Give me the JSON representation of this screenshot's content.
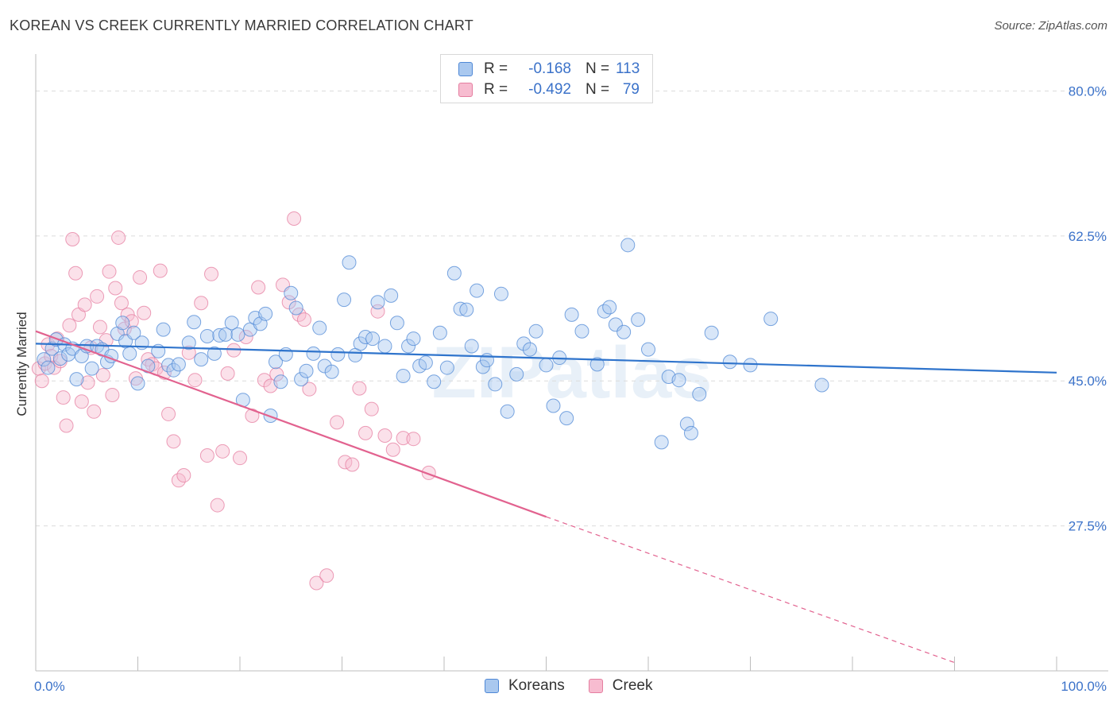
{
  "title": "KOREAN VS CREEK CURRENTLY MARRIED CORRELATION CHART",
  "source": "Source: ZipAtlas.com",
  "watermark": "ZIPatlas",
  "legend_top": [
    {
      "r_label": "R =",
      "r_value": "-0.168",
      "n_label": "N =",
      "n_value": "113"
    },
    {
      "r_label": "R =",
      "r_value": "-0.492",
      "n_label": "N =",
      "n_value": "79"
    }
  ],
  "legend_bottom": [
    "Koreans",
    "Creek"
  ],
  "colors": {
    "korean_fill": "#a9c8ef",
    "korean_stroke": "#4f88d6",
    "korean_line": "#2f74cc",
    "creek_fill": "#f7bcd0",
    "creek_stroke": "#e57ea0",
    "creek_line": "#e2628f",
    "tick_label": "#3b72c9",
    "grid": "#dcdcdc"
  },
  "chart_data": {
    "type": "scatter",
    "title": "KOREAN VS CREEK CURRENTLY MARRIED CORRELATION CHART",
    "xlabel": "",
    "ylabel": "Currently Married",
    "xlim": [
      0,
      100
    ],
    "ylim": [
      10,
      83.5
    ],
    "y_ticks": [
      27.5,
      45.0,
      62.5,
      80.0
    ],
    "y_tick_labels": [
      "27.5%",
      "45.0%",
      "62.5%",
      "80.0%"
    ],
    "x_tick_labels": [
      "0.0%",
      "100.0%"
    ],
    "grid": "horizontal dashed",
    "legend_position": "top-center and bottom-center",
    "series": [
      {
        "name": "Koreans",
        "r": -0.168,
        "n": 113,
        "trend": {
          "x0": 0,
          "y0": 49.5,
          "x1": 100,
          "y1": 46.0,
          "style": "solid"
        },
        "points": [
          [
            0.8,
            47.6
          ],
          [
            1.2,
            46.6
          ],
          [
            1.6,
            48.9
          ],
          [
            2.0,
            50.0
          ],
          [
            2.4,
            47.7
          ],
          [
            2.8,
            49.4
          ],
          [
            3.2,
            48.2
          ],
          [
            3.6,
            48.9
          ],
          [
            4.0,
            45.2
          ],
          [
            4.5,
            48.0
          ],
          [
            5.0,
            49.2
          ],
          [
            5.5,
            46.5
          ],
          [
            6.0,
            49.2
          ],
          [
            6.5,
            48.8
          ],
          [
            7.0,
            47.3
          ],
          [
            7.4,
            48.0
          ],
          [
            8.0,
            50.7
          ],
          [
            8.5,
            52.0
          ],
          [
            8.8,
            49.8
          ],
          [
            9.2,
            48.3
          ],
          [
            9.6,
            50.8
          ],
          [
            10.0,
            44.7
          ],
          [
            10.4,
            49.6
          ],
          [
            11.0,
            46.8
          ],
          [
            12.0,
            48.6
          ],
          [
            12.5,
            51.2
          ],
          [
            13.0,
            46.9
          ],
          [
            13.5,
            46.3
          ],
          [
            14.0,
            47.0
          ],
          [
            15.0,
            49.6
          ],
          [
            15.5,
            52.1
          ],
          [
            16.2,
            47.6
          ],
          [
            16.8,
            50.4
          ],
          [
            17.5,
            48.3
          ],
          [
            18.0,
            50.5
          ],
          [
            18.6,
            50.6
          ],
          [
            19.2,
            52.0
          ],
          [
            19.8,
            50.6
          ],
          [
            20.3,
            42.7
          ],
          [
            21.0,
            51.2
          ],
          [
            21.5,
            52.6
          ],
          [
            22.0,
            51.9
          ],
          [
            22.5,
            53.1
          ],
          [
            23.0,
            40.8
          ],
          [
            23.5,
            47.3
          ],
          [
            24.0,
            44.9
          ],
          [
            24.5,
            48.2
          ],
          [
            25.0,
            55.6
          ],
          [
            25.5,
            53.8
          ],
          [
            26.0,
            45.2
          ],
          [
            26.5,
            46.2
          ],
          [
            27.2,
            48.3
          ],
          [
            27.8,
            51.4
          ],
          [
            28.3,
            46.8
          ],
          [
            29.0,
            46.1
          ],
          [
            29.6,
            48.2
          ],
          [
            30.2,
            54.8
          ],
          [
            30.7,
            59.3
          ],
          [
            31.3,
            48.1
          ],
          [
            31.8,
            49.5
          ],
          [
            32.3,
            50.3
          ],
          [
            33.0,
            50.1
          ],
          [
            33.5,
            54.5
          ],
          [
            34.2,
            49.2
          ],
          [
            34.8,
            55.3
          ],
          [
            35.4,
            52.0
          ],
          [
            36.0,
            45.6
          ],
          [
            36.5,
            49.2
          ],
          [
            37.0,
            50.1
          ],
          [
            37.6,
            46.8
          ],
          [
            38.2,
            47.2
          ],
          [
            39.0,
            44.9
          ],
          [
            39.6,
            50.8
          ],
          [
            40.3,
            46.6
          ],
          [
            41.0,
            58.0
          ],
          [
            41.6,
            53.7
          ],
          [
            42.2,
            53.6
          ],
          [
            42.7,
            49.2
          ],
          [
            43.2,
            55.9
          ],
          [
            43.8,
            46.7
          ],
          [
            44.2,
            47.5
          ],
          [
            45.0,
            44.6
          ],
          [
            45.6,
            55.5
          ],
          [
            46.2,
            41.3
          ],
          [
            47.1,
            45.8
          ],
          [
            47.8,
            49.5
          ],
          [
            48.4,
            48.8
          ],
          [
            49.0,
            51.0
          ],
          [
            50.0,
            46.9
          ],
          [
            50.7,
            42.0
          ],
          [
            51.3,
            47.8
          ],
          [
            52.0,
            40.5
          ],
          [
            52.5,
            53.0
          ],
          [
            53.5,
            51.0
          ],
          [
            55.0,
            47.0
          ],
          [
            55.7,
            53.4
          ],
          [
            56.2,
            53.9
          ],
          [
            56.8,
            51.8
          ],
          [
            57.6,
            50.9
          ],
          [
            58.0,
            61.4
          ],
          [
            59.0,
            52.4
          ],
          [
            60.0,
            48.8
          ],
          [
            61.3,
            37.6
          ],
          [
            62.0,
            45.5
          ],
          [
            63.0,
            45.1
          ],
          [
            63.8,
            39.8
          ],
          [
            64.2,
            38.7
          ],
          [
            65.0,
            43.4
          ],
          [
            66.2,
            50.8
          ],
          [
            68.0,
            47.3
          ],
          [
            70.0,
            46.9
          ],
          [
            72.0,
            52.5
          ],
          [
            77.0,
            44.5
          ]
        ]
      },
      {
        "name": "Creek",
        "r": -0.492,
        "n": 79,
        "trend": {
          "x0": 0,
          "y0": 51.0,
          "x1": 50,
          "y1": 28.6,
          "style": "solid"
        },
        "trend_extension": {
          "x0": 50,
          "y0": 28.6,
          "x1": 90,
          "y1": 11.0,
          "style": "dashed"
        },
        "points": [
          [
            0.3,
            46.5
          ],
          [
            0.6,
            45.0
          ],
          [
            0.9,
            47.1
          ],
          [
            1.2,
            49.4
          ],
          [
            1.5,
            48.0
          ],
          [
            1.8,
            46.6
          ],
          [
            2.1,
            50.1
          ],
          [
            2.4,
            47.4
          ],
          [
            2.7,
            43.0
          ],
          [
            3.0,
            39.6
          ],
          [
            3.3,
            51.7
          ],
          [
            3.6,
            62.1
          ],
          [
            3.9,
            58.0
          ],
          [
            4.2,
            53.0
          ],
          [
            4.5,
            42.5
          ],
          [
            4.8,
            54.2
          ],
          [
            5.1,
            44.8
          ],
          [
            5.4,
            49.0
          ],
          [
            5.7,
            41.3
          ],
          [
            6.0,
            55.2
          ],
          [
            6.3,
            51.5
          ],
          [
            6.6,
            45.7
          ],
          [
            6.9,
            49.9
          ],
          [
            7.2,
            58.2
          ],
          [
            7.5,
            43.3
          ],
          [
            7.8,
            56.2
          ],
          [
            8.1,
            62.3
          ],
          [
            8.4,
            54.4
          ],
          [
            8.7,
            51.3
          ],
          [
            9.0,
            53.0
          ],
          [
            9.4,
            52.2
          ],
          [
            9.8,
            45.3
          ],
          [
            10.2,
            57.5
          ],
          [
            10.6,
            53.2
          ],
          [
            11.0,
            47.6
          ],
          [
            11.4,
            47.0
          ],
          [
            11.8,
            46.5
          ],
          [
            12.2,
            58.3
          ],
          [
            12.6,
            46.0
          ],
          [
            13.0,
            41.0
          ],
          [
            13.5,
            37.7
          ],
          [
            14.0,
            33.0
          ],
          [
            14.5,
            33.6
          ],
          [
            15.0,
            48.4
          ],
          [
            15.6,
            45.1
          ],
          [
            16.2,
            54.4
          ],
          [
            16.8,
            36.0
          ],
          [
            17.2,
            57.9
          ],
          [
            17.8,
            30.0
          ],
          [
            18.3,
            36.5
          ],
          [
            18.8,
            45.9
          ],
          [
            19.4,
            48.7
          ],
          [
            20.0,
            35.7
          ],
          [
            20.6,
            50.3
          ],
          [
            21.2,
            40.8
          ],
          [
            21.8,
            56.3
          ],
          [
            22.4,
            45.1
          ],
          [
            23.0,
            44.4
          ],
          [
            23.6,
            45.8
          ],
          [
            24.2,
            56.6
          ],
          [
            24.8,
            54.5
          ],
          [
            25.3,
            64.6
          ],
          [
            25.8,
            53.0
          ],
          [
            26.3,
            52.4
          ],
          [
            26.8,
            44.0
          ],
          [
            27.5,
            20.6
          ],
          [
            28.5,
            21.5
          ],
          [
            29.5,
            40.0
          ],
          [
            30.3,
            35.2
          ],
          [
            31.0,
            34.9
          ],
          [
            31.7,
            44.1
          ],
          [
            32.3,
            38.7
          ],
          [
            32.9,
            41.6
          ],
          [
            33.5,
            53.4
          ],
          [
            34.2,
            38.4
          ],
          [
            35.0,
            36.7
          ],
          [
            36.0,
            38.1
          ],
          [
            37.0,
            38.0
          ],
          [
            38.5,
            33.9
          ]
        ]
      }
    ]
  }
}
